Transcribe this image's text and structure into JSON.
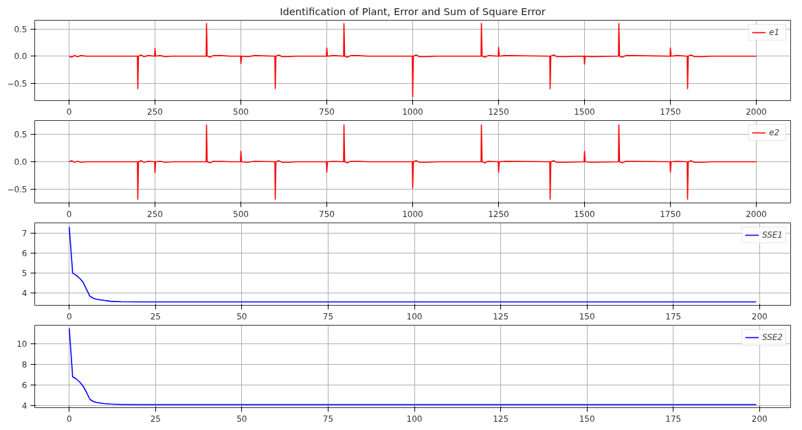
{
  "chart_data": [
    {
      "type": "line",
      "title": "Identification of Plant, Error and Sum of Square Error",
      "legend": "top right",
      "grid": true,
      "xlim": [
        -100,
        2100
      ],
      "xticks": [
        0,
        250,
        500,
        750,
        1000,
        1250,
        1500,
        1750,
        2000
      ],
      "ylim": [
        -0.82,
        0.66
      ],
      "yticks": [
        {
          "value": -0.5,
          "label": "−0.5"
        },
        {
          "value": 0,
          "label": "0.0"
        },
        {
          "value": 0.5,
          "label": "0.5"
        }
      ],
      "series": [
        {
          "name": "e1",
          "color": "#ff0000",
          "x": [
            0,
            8,
            15,
            25,
            35,
            50,
            199,
            200,
            202,
            210,
            218,
            230,
            249,
            250,
            252,
            265,
            280,
            300,
            399,
            400,
            402,
            410,
            420,
            440,
            470,
            499,
            500,
            502,
            520,
            540,
            599,
            600,
            602,
            610,
            620,
            640,
            660,
            749,
            750,
            752,
            770,
            799,
            800,
            802,
            810,
            820,
            840,
            870,
            999,
            1000,
            1002,
            1010,
            1020,
            1040,
            1070,
            1199,
            1200,
            1202,
            1210,
            1220,
            1249,
            1250,
            1252,
            1270,
            1399,
            1400,
            1402,
            1410,
            1420,
            1440,
            1499,
            1500,
            1502,
            1520,
            1599,
            1600,
            1602,
            1610,
            1620,
            1640,
            1749,
            1750,
            1752,
            1770,
            1799,
            1800,
            1802,
            1810,
            1820,
            1840,
            1870,
            2000
          ],
          "values": [
            0,
            -0.02,
            0.01,
            -0.01,
            0.01,
            0,
            0,
            -0.6,
            0,
            0.02,
            -0.01,
            0.01,
            0,
            0.14,
            0,
            0.01,
            -0.01,
            0,
            0,
            0.6,
            0,
            -0.02,
            0.01,
            0.01,
            0,
            0,
            -0.14,
            0,
            -0.01,
            0.01,
            0,
            -0.6,
            0,
            0.02,
            -0.01,
            -0.01,
            0,
            0,
            0.15,
            0,
            0.01,
            0,
            0.6,
            0,
            -0.02,
            0.01,
            0.01,
            0,
            0,
            -0.75,
            0,
            0.02,
            -0.01,
            -0.01,
            0,
            0,
            0.6,
            0,
            -0.02,
            0.01,
            0,
            0.16,
            0,
            0.01,
            0,
            -0.6,
            0,
            0.02,
            -0.01,
            -0.01,
            0,
            -0.15,
            0,
            -0.01,
            0,
            0.6,
            0,
            -0.02,
            0.01,
            0.01,
            0,
            0.15,
            0,
            0.01,
            0,
            -0.6,
            0,
            0.02,
            -0.01,
            -0.01,
            0,
            0
          ]
        }
      ]
    },
    {
      "type": "line",
      "legend": "top right",
      "grid": true,
      "xlim": [
        -100,
        2100
      ],
      "xticks": [
        0,
        250,
        500,
        750,
        1000,
        1250,
        1500,
        1750,
        2000
      ],
      "ylim": [
        -0.75,
        0.75
      ],
      "yticks": [
        {
          "value": -0.5,
          "label": "−0.5"
        },
        {
          "value": 0,
          "label": "0.0"
        },
        {
          "value": 0.5,
          "label": "0.5"
        }
      ],
      "series": [
        {
          "name": "e2",
          "color": "#ff0000",
          "x": [
            0,
            8,
            15,
            25,
            35,
            50,
            199,
            200,
            202,
            210,
            218,
            230,
            249,
            250,
            252,
            265,
            280,
            300,
            399,
            400,
            402,
            410,
            420,
            440,
            470,
            499,
            500,
            502,
            520,
            540,
            599,
            600,
            602,
            610,
            620,
            640,
            660,
            749,
            750,
            752,
            770,
            799,
            800,
            802,
            810,
            820,
            840,
            870,
            999,
            1000,
            1002,
            1010,
            1020,
            1040,
            1070,
            1199,
            1200,
            1202,
            1210,
            1220,
            1249,
            1250,
            1252,
            1270,
            1399,
            1400,
            1402,
            1410,
            1420,
            1440,
            1499,
            1500,
            1502,
            1520,
            1599,
            1600,
            1602,
            1610,
            1620,
            1640,
            1749,
            1750,
            1752,
            1770,
            1799,
            1800,
            1802,
            1810,
            1820,
            1840,
            1870,
            2000
          ],
          "values": [
            0,
            0.02,
            -0.01,
            0.01,
            -0.01,
            0,
            0,
            -0.68,
            0,
            0.02,
            -0.01,
            0.01,
            0,
            -0.2,
            0,
            0.01,
            -0.01,
            0,
            0,
            0.67,
            0,
            -0.02,
            0.01,
            0.01,
            0,
            0,
            0.19,
            0,
            -0.01,
            0.01,
            0,
            -0.68,
            0,
            0.02,
            -0.01,
            -0.01,
            0,
            0,
            -0.19,
            0,
            0.01,
            0,
            0.67,
            0,
            -0.02,
            0.01,
            0.01,
            0,
            0,
            -0.48,
            0,
            0.02,
            -0.01,
            -0.01,
            0,
            0,
            0.67,
            0,
            -0.02,
            0.01,
            0,
            -0.19,
            0,
            0.01,
            0,
            -0.68,
            0,
            0.02,
            -0.01,
            -0.01,
            0,
            0.19,
            0,
            -0.01,
            0,
            0.67,
            0,
            -0.02,
            0.01,
            0.01,
            0,
            -0.19,
            0,
            0.01,
            0,
            -0.68,
            0,
            0.02,
            -0.01,
            -0.01,
            0,
            0
          ]
        }
      ]
    },
    {
      "type": "line",
      "legend": "top right",
      "grid": true,
      "xlim": [
        -10,
        209
      ],
      "xticks": [
        0,
        25,
        50,
        75,
        100,
        125,
        150,
        175,
        200
      ],
      "ylim": [
        3.4,
        7.5
      ],
      "yticks": [
        4,
        5,
        6,
        7
      ],
      "series": [
        {
          "name": "SSE1",
          "color": "#0000ff",
          "x": [
            0,
            1,
            2,
            3,
            4,
            5,
            6,
            7,
            8,
            10,
            12,
            15,
            20,
            199
          ],
          "values": [
            7.3,
            5.0,
            4.9,
            4.75,
            4.55,
            4.2,
            3.85,
            3.75,
            3.7,
            3.65,
            3.6,
            3.58,
            3.57,
            3.57
          ]
        }
      ]
    },
    {
      "type": "line",
      "legend": "top right",
      "grid": true,
      "xlim": [
        -10,
        209
      ],
      "xticks": [
        0,
        25,
        50,
        75,
        100,
        125,
        150,
        175,
        200
      ],
      "ylim": [
        3.8,
        11.8
      ],
      "yticks": [
        4,
        6,
        8,
        10
      ],
      "series": [
        {
          "name": "SSE2",
          "color": "#0000ff",
          "x": [
            0,
            1,
            2,
            3,
            4,
            5,
            6,
            7,
            8,
            10,
            12,
            15,
            20,
            199
          ],
          "values": [
            11.5,
            6.8,
            6.6,
            6.3,
            5.9,
            5.3,
            4.6,
            4.4,
            4.3,
            4.2,
            4.15,
            4.12,
            4.1,
            4.1
          ]
        }
      ]
    }
  ]
}
